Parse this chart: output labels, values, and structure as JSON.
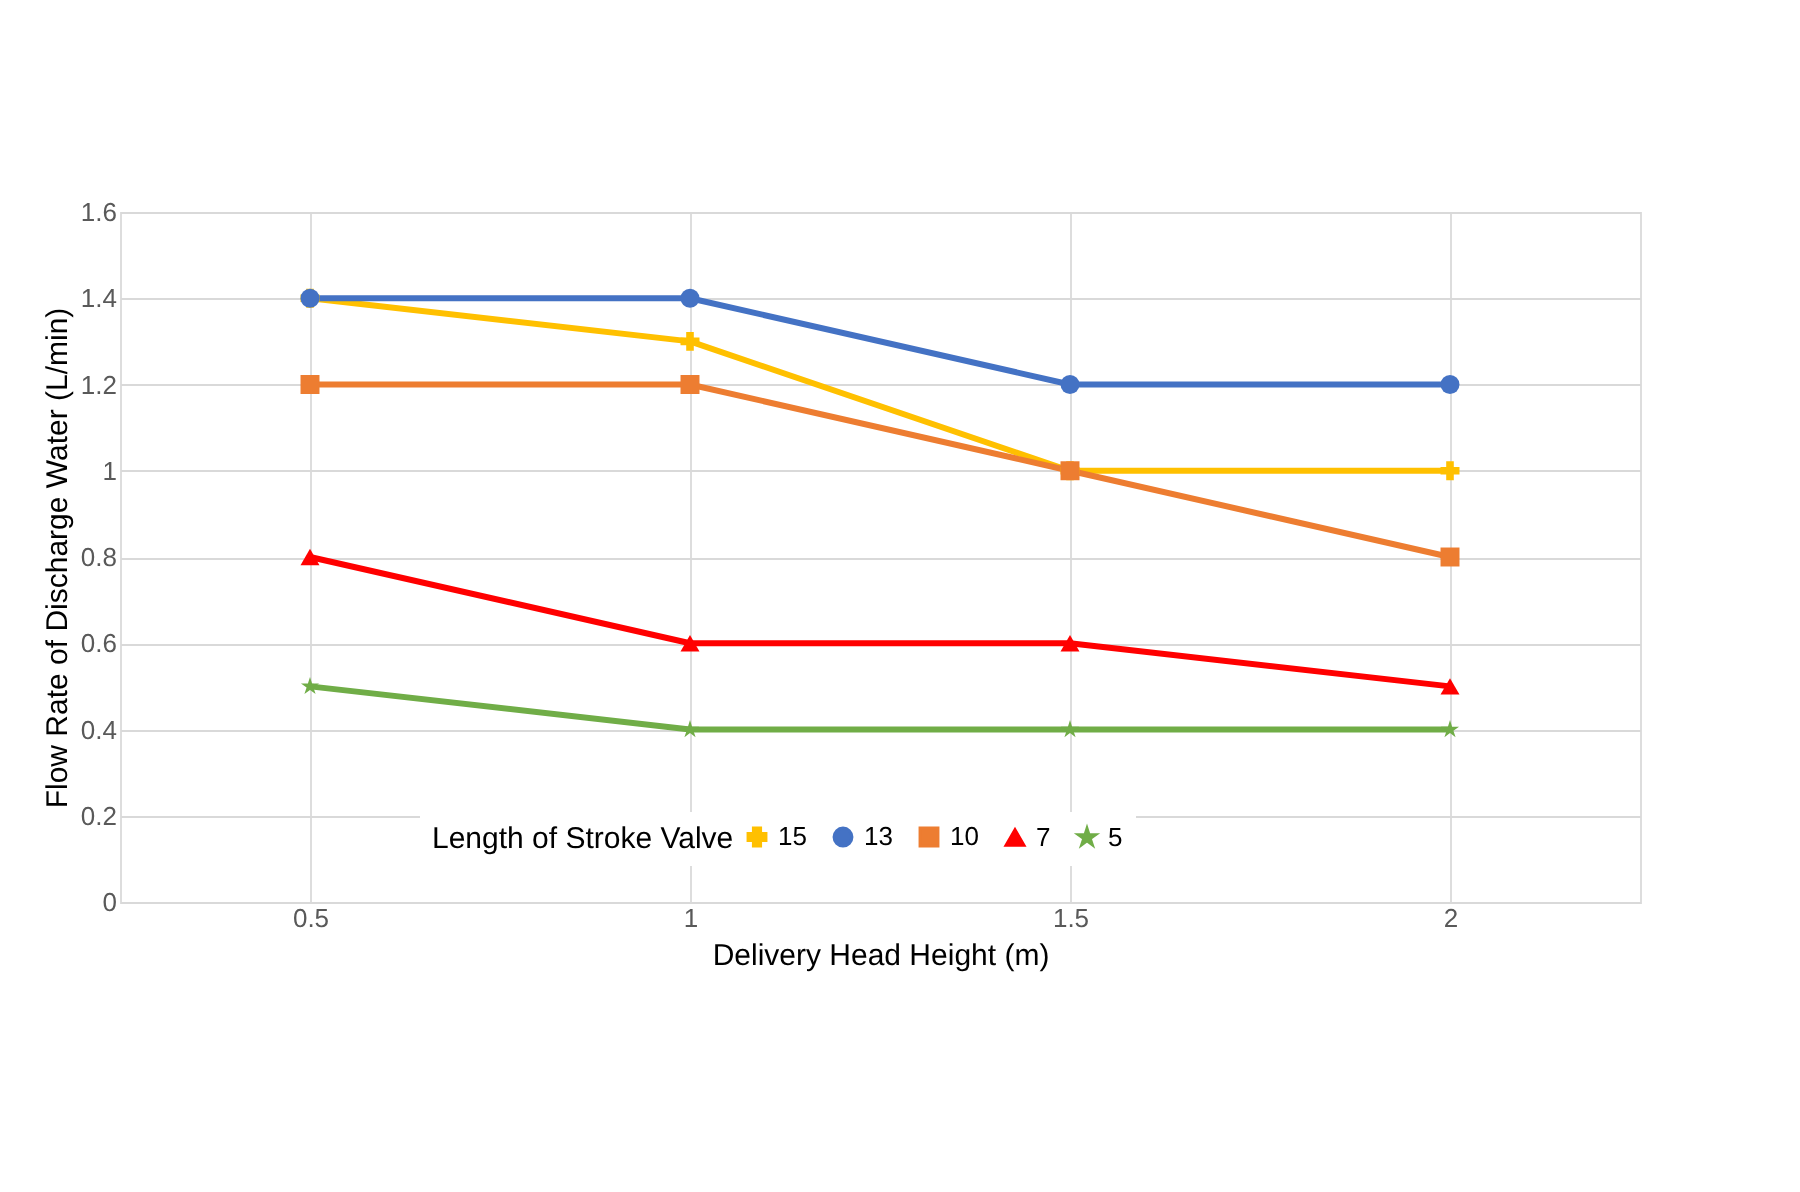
{
  "chart_data": {
    "type": "line",
    "xlabel": "Delivery Head Height (m)",
    "ylabel": "Flow Rate of Discharge Water (L/min)",
    "legend_title": "Length of Stroke Valve",
    "categories": [
      "0.5",
      "1",
      "1.5",
      "2"
    ],
    "series": [
      {
        "name": "15",
        "color": "#ffc000",
        "marker": "cross",
        "values": [
          1.4,
          1.3,
          1.0,
          1.0
        ]
      },
      {
        "name": "13",
        "color": "#4472c4",
        "marker": "circle",
        "values": [
          1.4,
          1.4,
          1.2,
          1.2
        ]
      },
      {
        "name": "10",
        "color": "#ed7d31",
        "marker": "square",
        "values": [
          1.2,
          1.2,
          1.0,
          0.8
        ]
      },
      {
        "name": "7",
        "color": "#ff0000",
        "marker": "triangle",
        "values": [
          0.8,
          0.6,
          0.6,
          0.5
        ]
      },
      {
        "name": "5",
        "color": "#70ad47",
        "marker": "star",
        "values": [
          0.5,
          0.4,
          0.4,
          0.4
        ]
      }
    ],
    "ylim": [
      0,
      1.6
    ],
    "yticks": [
      0,
      0.2,
      0.4,
      0.6,
      0.8,
      1,
      1.2,
      1.4,
      1.6
    ],
    "grid": true,
    "legend": "bottom",
    "line_style": "solid"
  }
}
